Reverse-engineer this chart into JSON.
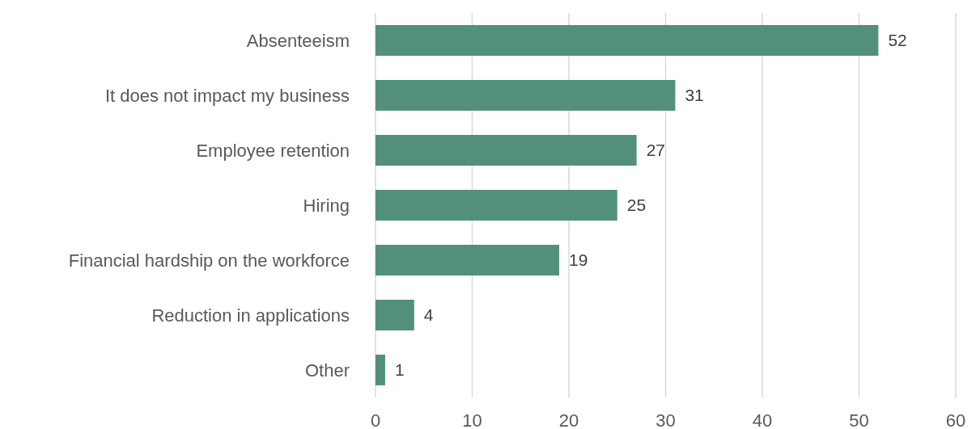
{
  "chart_data": {
    "type": "bar",
    "orientation": "horizontal",
    "categories": [
      "Absenteeism",
      "It does not impact my business",
      "Employee retention",
      "Hiring",
      "Financial hardship on the workforce",
      "Reduction in applications",
      "Other"
    ],
    "values": [
      52,
      31,
      27,
      25,
      19,
      4,
      1
    ],
    "color": "#52907a",
    "xlim": [
      0,
      60
    ],
    "xticks": [
      0,
      10,
      20,
      30,
      40,
      50,
      60
    ],
    "grid": "x",
    "data_labels": true
  }
}
